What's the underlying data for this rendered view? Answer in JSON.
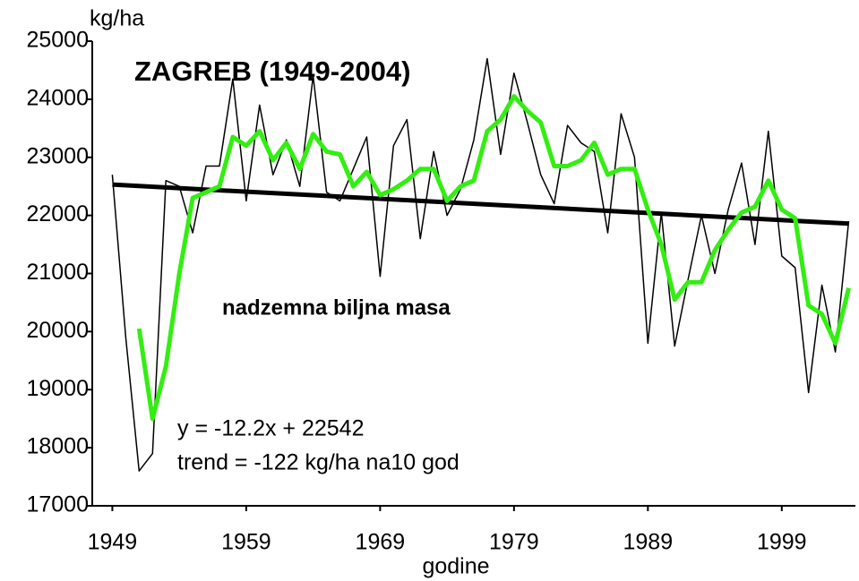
{
  "chart_data": {
    "type": "line",
    "title": "ZAGREB (1949-2004)",
    "y_unit": "kg/ha",
    "x_label": "godine",
    "annotations": [
      "nadzemna biljna masa",
      "y = -12.2x + 22542",
      "trend = -122 kg/ha na10 god"
    ],
    "x": [
      1949,
      1950,
      1951,
      1952,
      1953,
      1954,
      1955,
      1956,
      1957,
      1958,
      1959,
      1960,
      1961,
      1962,
      1963,
      1964,
      1965,
      1966,
      1967,
      1968,
      1969,
      1970,
      1971,
      1972,
      1973,
      1974,
      1975,
      1976,
      1977,
      1978,
      1979,
      1980,
      1981,
      1982,
      1983,
      1984,
      1985,
      1986,
      1987,
      1988,
      1989,
      1990,
      1991,
      1992,
      1993,
      1994,
      1995,
      1996,
      1997,
      1998,
      1999,
      2000,
      2001,
      2002,
      2003,
      2004
    ],
    "series": [
      {
        "color": "#000000",
        "values": [
          22700,
          19900,
          17600,
          17900,
          22600,
          22500,
          21700,
          22850,
          22850,
          24350,
          22250,
          23900,
          22700,
          23300,
          22500,
          24400,
          22400,
          22250,
          22800,
          23350,
          20950,
          23200,
          23650,
          21600,
          23100,
          22000,
          22450,
          23300,
          24700,
          23050,
          24450,
          23600,
          22700,
          22200,
          23550,
          23250,
          23100,
          21700,
          23750,
          23000,
          19800,
          22050,
          19750,
          20900,
          22000,
          21000,
          22100,
          22900,
          21500,
          23450,
          21300,
          21100,
          18950,
          20800,
          19650,
          21900
        ]
      },
      {
        "color": "#33ee11",
        "values": [
          null,
          null,
          20050,
          18500,
          19400,
          21000,
          22300,
          22400,
          22500,
          23350,
          23200,
          23450,
          22950,
          23250,
          22800,
          23400,
          23100,
          23050,
          22500,
          22750,
          22350,
          22450,
          22600,
          22800,
          22800,
          22250,
          22500,
          22600,
          23450,
          23650,
          24050,
          23800,
          23600,
          22850,
          22850,
          22950,
          23250,
          22700,
          22800,
          22800,
          22100,
          21500,
          20550,
          20850,
          20850,
          21400,
          21750,
          22050,
          22150,
          22600,
          22100,
          21950,
          20450,
          20300,
          19800,
          20750
        ]
      }
    ],
    "trend": {
      "x": [
        1949,
        2004
      ],
      "values": [
        22530,
        21859
      ],
      "color": "#000000"
    },
    "xlim": [
      1947.5,
      2004.5
    ],
    "xticks": [
      1949,
      1959,
      1969,
      1979,
      1989,
      1999
    ],
    "ylim": [
      17000,
      25000
    ],
    "yticks": [
      17000,
      18000,
      19000,
      20000,
      21000,
      22000,
      23000,
      24000,
      25000
    ],
    "grid": false
  }
}
